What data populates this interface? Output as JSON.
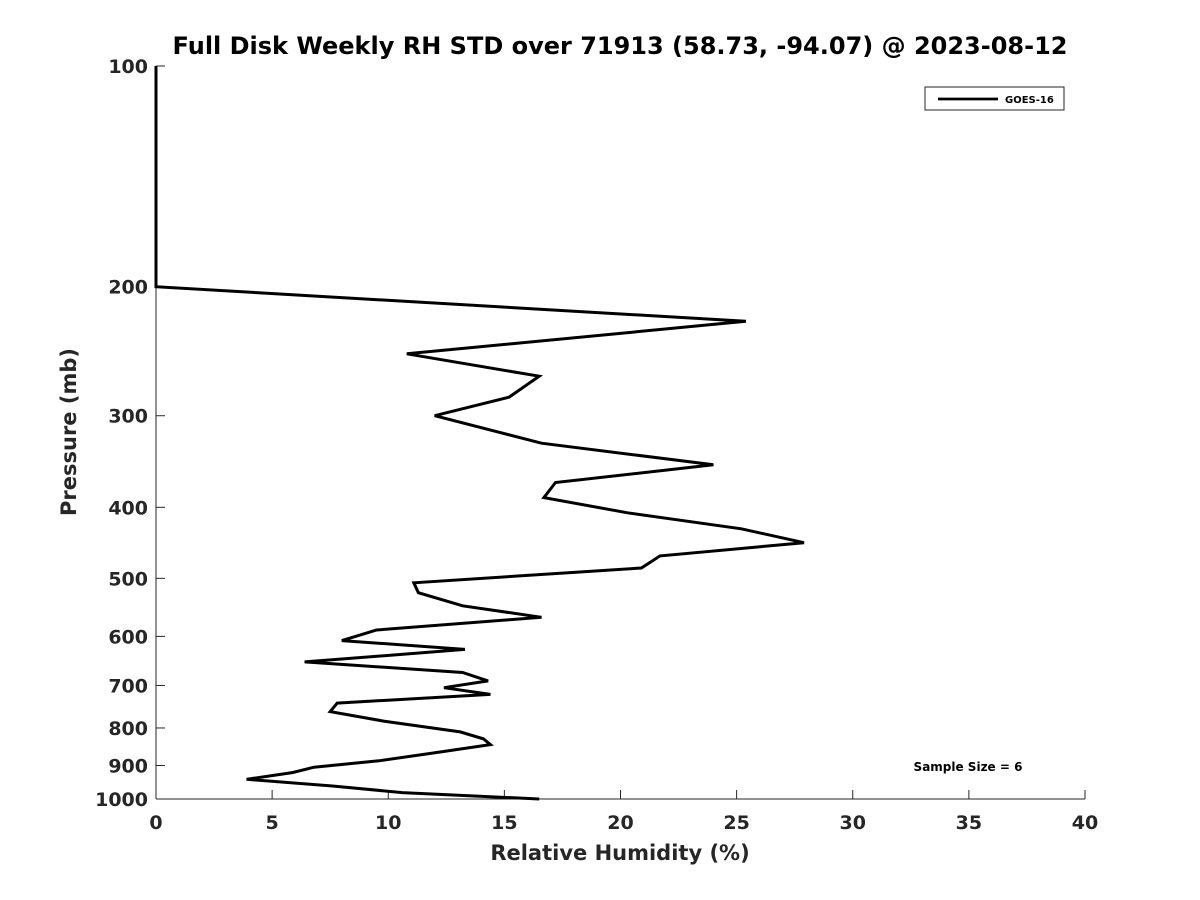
{
  "chart_data": {
    "type": "line",
    "title": "Full Disk Weekly RH STD over 71913 (58.73, -94.07) @ 2023-08-12",
    "xlabel": "Relative Humidity (%)",
    "ylabel": "Pressure (mb)",
    "xlim": [
      0,
      40
    ],
    "ylim": [
      100,
      1000
    ],
    "y_scale": "log",
    "y_reversed": true,
    "x_ticks": [
      0,
      5,
      10,
      15,
      20,
      25,
      30,
      35,
      40
    ],
    "y_ticks": [
      100,
      200,
      300,
      400,
      500,
      600,
      700,
      800,
      900,
      1000
    ],
    "grid": false,
    "legend_position": "top-right",
    "series": [
      {
        "name": "GOES-16",
        "color": "#000000",
        "x": [
          0,
          0,
          0,
          0,
          0,
          0,
          25.4,
          10.8,
          16.5,
          15.2,
          12.0,
          16.6,
          24.0,
          17.2,
          16.7,
          20.3,
          25.2,
          27.9,
          21.7,
          20.9,
          11.1,
          11.3,
          13.2,
          16.6,
          9.5,
          8.0,
          13.3,
          6.4,
          13.2,
          14.3,
          12.4,
          14.4,
          7.8,
          7.5,
          9.8,
          13.1,
          14.1,
          14.4,
          12.2,
          9.6,
          6.8,
          5.9,
          3.9,
          7.6,
          10.6,
          16.5
        ],
        "y": [
          100,
          120,
          140,
          160,
          180,
          200,
          223,
          247,
          265,
          283,
          300,
          327,
          350,
          370,
          388,
          407,
          428,
          447,
          466,
          484,
          507,
          523,
          545,
          565,
          588,
          608,
          625,
          650,
          672,
          690,
          705,
          720,
          740,
          760,
          783,
          810,
          828,
          843,
          863,
          887,
          905,
          920,
          940,
          960,
          980,
          1000
        ]
      }
    ],
    "annotations": [
      "Sample Size = 6"
    ]
  }
}
